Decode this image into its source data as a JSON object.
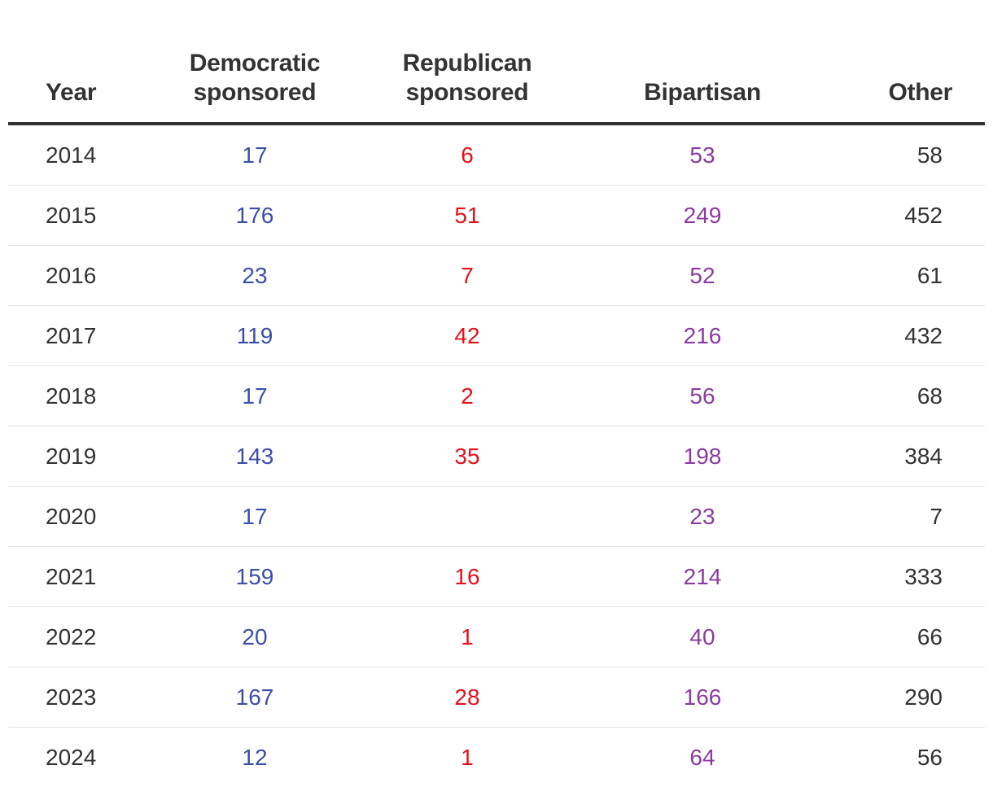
{
  "chart_data": {
    "type": "table",
    "columns": [
      {
        "key": "year",
        "lines": [
          "Year"
        ]
      },
      {
        "key": "democratic",
        "lines": [
          "Democratic",
          "sponsored"
        ]
      },
      {
        "key": "republican",
        "lines": [
          "Republican",
          "sponsored"
        ]
      },
      {
        "key": "bipartisan",
        "lines": [
          "Bipartisan"
        ]
      },
      {
        "key": "other",
        "lines": [
          "Other"
        ]
      }
    ],
    "colors": {
      "democratic": "#3a4fa8",
      "republican": "#e3101b",
      "bipartisan": "#8c3aa0",
      "other": "#333333",
      "year": "#333333"
    },
    "rows": [
      {
        "year": "2014",
        "democratic": "17",
        "republican": "6",
        "bipartisan": "53",
        "other": "58"
      },
      {
        "year": "2015",
        "democratic": "176",
        "republican": "51",
        "bipartisan": "249",
        "other": "452"
      },
      {
        "year": "2016",
        "democratic": "23",
        "republican": "7",
        "bipartisan": "52",
        "other": "61"
      },
      {
        "year": "2017",
        "democratic": "119",
        "republican": "42",
        "bipartisan": "216",
        "other": "432"
      },
      {
        "year": "2018",
        "democratic": "17",
        "republican": "2",
        "bipartisan": "56",
        "other": "68"
      },
      {
        "year": "2019",
        "democratic": "143",
        "republican": "35",
        "bipartisan": "198",
        "other": "384"
      },
      {
        "year": "2020",
        "democratic": "17",
        "republican": "",
        "bipartisan": "23",
        "other": "7"
      },
      {
        "year": "2021",
        "democratic": "159",
        "republican": "16",
        "bipartisan": "214",
        "other": "333"
      },
      {
        "year": "2022",
        "democratic": "20",
        "republican": "1",
        "bipartisan": "40",
        "other": "66"
      },
      {
        "year": "2023",
        "democratic": "167",
        "republican": "28",
        "bipartisan": "166",
        "other": "290"
      },
      {
        "year": "2024",
        "democratic": "12",
        "republican": "1",
        "bipartisan": "64",
        "other": "56"
      }
    ]
  }
}
